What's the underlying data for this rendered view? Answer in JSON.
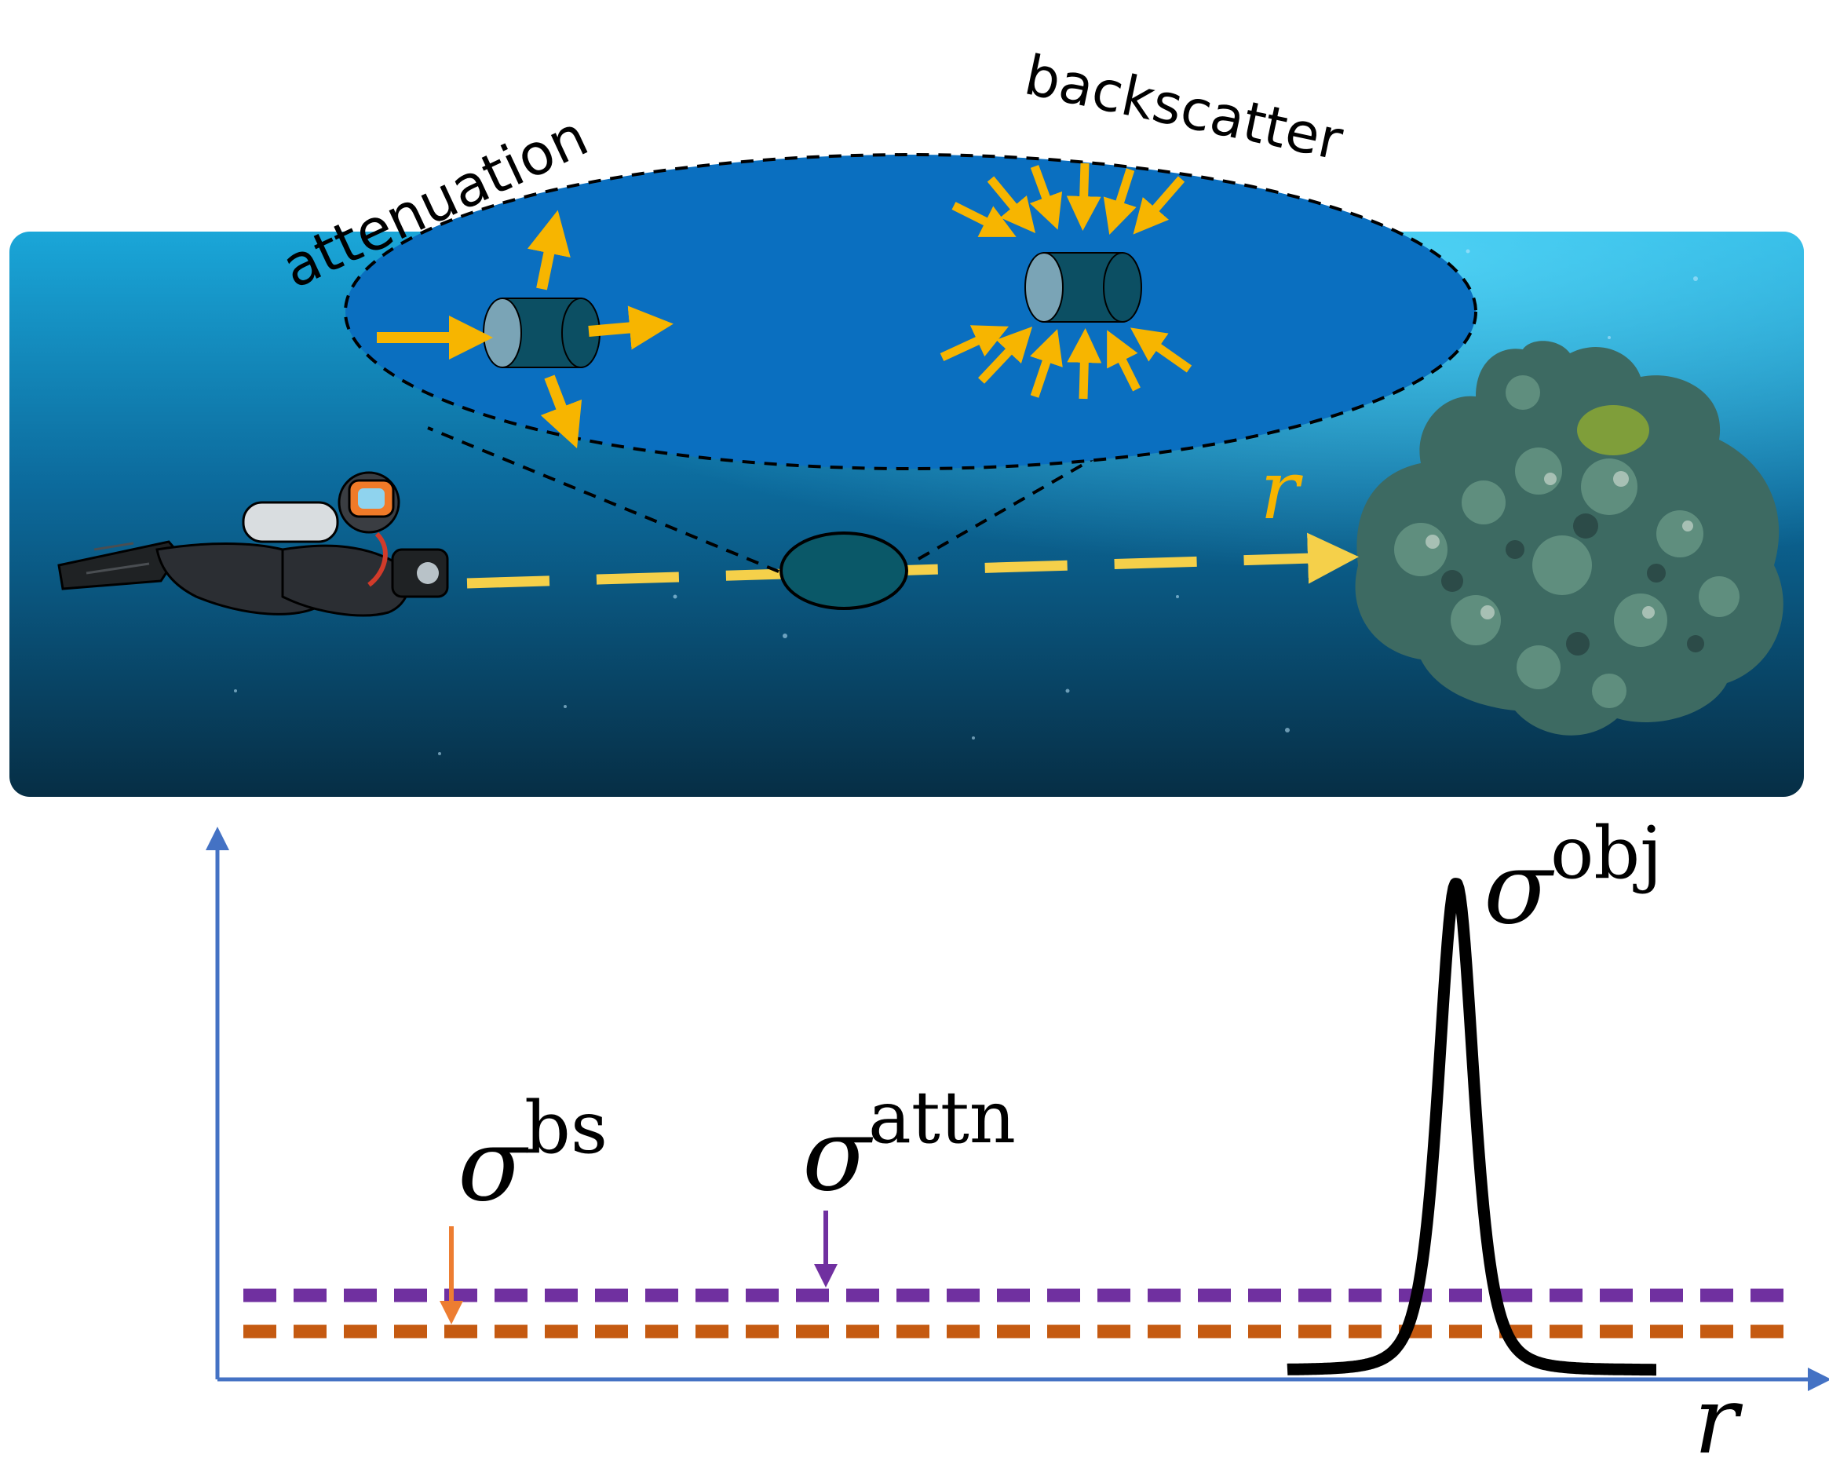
{
  "scene": {
    "labels": {
      "attenuation": "attenuation",
      "backscatter": "backscatter",
      "ray_r": "r"
    },
    "colors": {
      "water_top": "#1aa6d8",
      "water_mid": "#0c6a9c",
      "water_bottom": "#062e45",
      "zoom_ellipse_fill": "#0a6fc0",
      "particle": "#0c4f63",
      "particle_face": "#7aa4b6",
      "arrow": "#f7b500",
      "ray": "#f5d04a",
      "ray_label": "#f7b500",
      "coral": "#3d6a62"
    }
  },
  "plot": {
    "y_label": "",
    "x_label": "r",
    "labels": {
      "obj_sym": "σ",
      "obj_sup": "obj",
      "bs_sym": "σ",
      "bs_sup": "bs",
      "attn_sym": "σ",
      "attn_sup": "attn"
    },
    "colors": {
      "axis": "#4472c4",
      "attn_line": "#7030a0",
      "bs_line": "#c55a11",
      "bs_marker": "#ed7d31",
      "obj_curve": "#000000"
    },
    "series": [
      {
        "key": "sigma_attn",
        "style": "dashed",
        "level": 0.17
      },
      {
        "key": "sigma_bs",
        "style": "dashed",
        "level": 0.11
      },
      {
        "key": "sigma_obj",
        "style": "solid",
        "peak_position": 0.78,
        "peak_level": 1.0
      }
    ]
  }
}
